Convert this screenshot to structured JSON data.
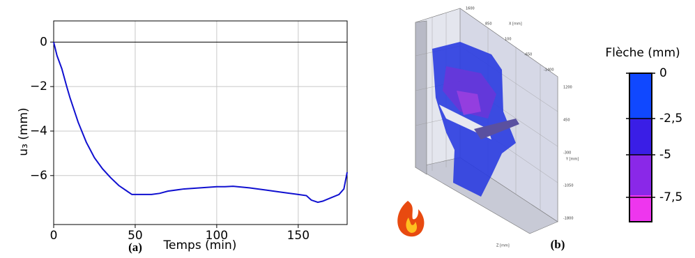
{
  "chart_data": {
    "type": "line",
    "xlabel": "Temps (min)",
    "ylabel": "u₃ (mm)",
    "xlim": [
      0,
      180
    ],
    "ylim": [
      -8.2,
      0.95
    ],
    "xticks": [
      0,
      50,
      100,
      150
    ],
    "yticks": [
      0,
      {
        "value": -2,
        "label": "−2"
      },
      {
        "value": -4,
        "label": "−4"
      },
      {
        "value": -6,
        "label": "−6"
      }
    ],
    "grid": true,
    "series": [
      {
        "color": "#1010d0",
        "x": [
          0,
          2,
          5,
          8,
          10,
          15,
          20,
          25,
          30,
          35,
          40,
          45,
          48,
          50,
          60,
          65,
          70,
          80,
          90,
          100,
          105,
          110,
          120,
          130,
          140,
          150,
          155,
          158,
          162,
          165,
          170,
          175,
          178,
          180
        ],
        "values": [
          0,
          -0.6,
          -1.2,
          -2,
          -2.5,
          -3.6,
          -4.5,
          -5.2,
          -5.7,
          -6.1,
          -6.45,
          -6.7,
          -6.85,
          -6.85,
          -6.85,
          -6.8,
          -6.7,
          -6.6,
          -6.55,
          -6.5,
          -6.5,
          -6.48,
          -6.55,
          -6.65,
          -6.75,
          -6.85,
          -6.9,
          -7.1,
          -7.2,
          -7.15,
          -7.0,
          -6.85,
          -6.6,
          -5.85
        ]
      }
    ]
  },
  "panel_labels": [
    "(a)",
    "(b)"
  ],
  "colorbar": {
    "title": "Flèche (mm)",
    "ticks": [
      "0",
      "-2,5",
      "-5",
      "-7,5"
    ]
  },
  "render_axes": {
    "x": [
      "1600",
      "850",
      "100",
      "-650",
      "-1400"
    ],
    "y": [
      "1200",
      "450",
      "-300",
      "-1050",
      "-1800"
    ],
    "x_title": "X [mm]",
    "y_title": "Y [mm]",
    "z_title": "Z [mm]"
  }
}
